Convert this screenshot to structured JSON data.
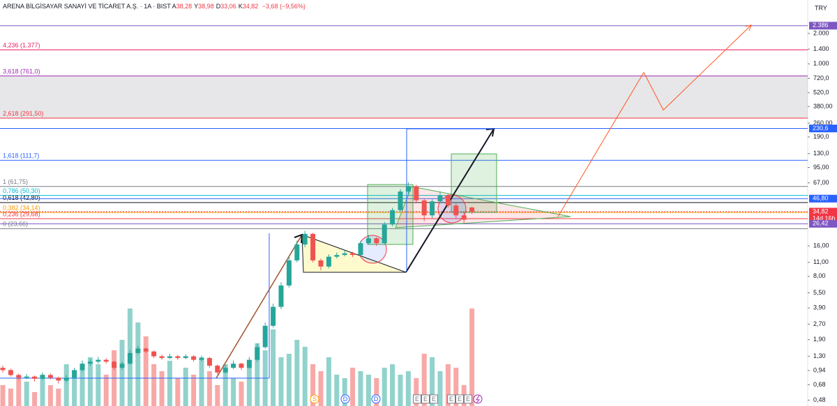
{
  "chart_data": {
    "type": "candlestick",
    "title": "ARENA BİLGİSAYAR SANAYİ VE TİCARET A.Ş. · 1A · BIST",
    "ohlc_labels": [
      {
        "key": "A",
        "value": "38,28"
      },
      {
        "key": "Y",
        "value": "38,98"
      },
      {
        "key": "D",
        "value": "33,06"
      },
      {
        "key": "K",
        "value": "34,82"
      }
    ],
    "change": "−3,68 (−9,56%)",
    "currency": "TRY",
    "log_scale": true,
    "up_color": "#26a69a",
    "down_color": "#ef5350",
    "ylim": [
      0.42,
      4276
    ],
    "yticks": [
      {
        "value": 2000,
        "label": "2.000"
      },
      {
        "value": 1400,
        "label": "1.400"
      },
      {
        "value": 1000,
        "label": "1.000"
      },
      {
        "value": 720,
        "label": "720,0"
      },
      {
        "value": 520,
        "label": "520,0"
      },
      {
        "value": 380,
        "label": "380,00"
      },
      {
        "value": 260,
        "label": "260,00"
      },
      {
        "value": 190,
        "label": "190,0"
      },
      {
        "value": 130,
        "label": "130,0"
      },
      {
        "value": 95,
        "label": "95,00"
      },
      {
        "value": 67,
        "label": "67,00"
      },
      {
        "value": 16,
        "label": "16,00"
      },
      {
        "value": 11,
        "label": "11,00"
      },
      {
        "value": 8,
        "label": "8,00"
      },
      {
        "value": 5.5,
        "label": "5,50"
      },
      {
        "value": 3.9,
        "label": "3,90"
      },
      {
        "value": 2.7,
        "label": "2,70"
      },
      {
        "value": 1.9,
        "label": "1,90"
      },
      {
        "value": 1.3,
        "label": "1,30"
      },
      {
        "value": 0.94,
        "label": "0,94"
      },
      {
        "value": 0.68,
        "label": "0,68"
      },
      {
        "value": 0.48,
        "label": "0,48"
      }
    ],
    "price_labels": [
      {
        "value": 2386,
        "label": "2.386",
        "color": "#7e57c2"
      },
      {
        "value": 230.6,
        "label": "230,6",
        "color": "#2962ff"
      },
      {
        "value": 46.8,
        "label": "46,80",
        "color": "#2962ff"
      },
      {
        "value": 34.82,
        "label": "34,82",
        "color": "#f23645",
        "sub": "14d 16h"
      },
      {
        "value": 26.42,
        "label": "26,42",
        "color": "#7e57c2"
      }
    ],
    "fib_levels": [
      {
        "label": "4,236 (1.377)",
        "price": 1377,
        "color": "#e91e63"
      },
      {
        "label": "3,618 (761,0)",
        "price": 761.0,
        "color": "#9c27b0"
      },
      {
        "label": "2,618 (291,50)",
        "price": 291.5,
        "color": "#f23645"
      },
      {
        "label": "1,618 (111,7)",
        "price": 111.7,
        "color": "#2962ff"
      },
      {
        "label": "1 (61,75)",
        "price": 61.75,
        "color": "#787b86"
      },
      {
        "label": "0,786 (50,30)",
        "price": 50.3,
        "color": "#00bcd4"
      },
      {
        "label": "0,618 (42,80)",
        "price": 42.8,
        "color": "#131722"
      },
      {
        "label": "0,382 (34,14)",
        "price": 34.14,
        "color": "#ff9800"
      },
      {
        "label": "0,236 (29,68)",
        "price": 29.68,
        "color": "#f23645"
      },
      {
        "label": "0 (23,66)",
        "price": 23.66,
        "color": "#787b86"
      }
    ],
    "candles": [
      [
        1.0,
        1.05,
        0.9,
        0.95
      ],
      [
        0.95,
        0.98,
        0.82,
        0.85
      ],
      [
        0.85,
        0.88,
        0.76,
        0.8
      ],
      [
        0.8,
        0.87,
        0.77,
        0.82
      ],
      [
        0.82,
        0.84,
        0.73,
        0.78
      ],
      [
        0.78,
        0.9,
        0.76,
        0.85
      ],
      [
        0.85,
        0.88,
        0.77,
        0.8
      ],
      [
        0.8,
        0.82,
        0.7,
        0.75
      ],
      [
        0.75,
        0.85,
        0.72,
        0.8
      ],
      [
        0.8,
        1.0,
        0.78,
        0.95
      ],
      [
        0.95,
        1.18,
        0.92,
        1.1
      ],
      [
        1.1,
        1.22,
        1.05,
        1.15
      ],
      [
        1.15,
        1.28,
        1.1,
        1.2
      ],
      [
        1.2,
        1.24,
        1.1,
        1.15
      ],
      [
        1.15,
        1.18,
        0.95,
        1.0
      ],
      [
        1.0,
        1.15,
        0.96,
        1.1
      ],
      [
        1.1,
        1.5,
        1.08,
        1.4
      ],
      [
        1.4,
        1.65,
        1.35,
        1.55
      ],
      [
        1.55,
        1.58,
        1.4,
        1.45
      ],
      [
        1.45,
        1.48,
        1.25,
        1.3
      ],
      [
        1.3,
        1.35,
        1.2,
        1.25
      ],
      [
        1.25,
        1.38,
        1.22,
        1.3
      ],
      [
        1.3,
        1.34,
        1.2,
        1.25
      ],
      [
        1.25,
        1.36,
        1.22,
        1.3
      ],
      [
        1.3,
        1.33,
        1.15,
        1.2
      ],
      [
        1.2,
        1.32,
        1.16,
        1.25
      ],
      [
        1.25,
        1.28,
        1.0,
        1.05
      ],
      [
        1.05,
        1.08,
        0.86,
        0.9
      ],
      [
        0.9,
        1.06,
        0.88,
        1.0
      ],
      [
        1.0,
        1.18,
        0.97,
        1.1
      ],
      [
        1.1,
        1.12,
        0.95,
        1.0
      ],
      [
        1.0,
        1.28,
        0.98,
        1.2
      ],
      [
        1.2,
        1.75,
        1.15,
        1.6
      ],
      [
        1.6,
        2.8,
        1.55,
        2.6
      ],
      [
        2.6,
        4.3,
        2.5,
        4.0
      ],
      [
        4.0,
        7.0,
        3.8,
        6.5
      ],
      [
        6.5,
        12.5,
        6.2,
        11.5
      ],
      [
        11.5,
        18.0,
        11.0,
        16.5
      ],
      [
        16.5,
        22.5,
        15.5,
        21.0
      ],
      [
        21.0,
        21.5,
        11.0,
        11.5
      ],
      [
        11.5,
        12.0,
        9.2,
        10.0
      ],
      [
        10.0,
        13.2,
        9.6,
        12.5
      ],
      [
        12.5,
        13.8,
        12.0,
        13.0
      ],
      [
        13.0,
        14.5,
        12.6,
        13.5
      ],
      [
        13.5,
        14.0,
        12.4,
        13.0
      ],
      [
        13.0,
        18.0,
        12.8,
        17.0
      ],
      [
        17.0,
        20.5,
        16.5,
        19.0
      ],
      [
        19.0,
        19.5,
        16.0,
        17.0
      ],
      [
        17.0,
        27.5,
        16.8,
        26.0
      ],
      [
        26.0,
        38.0,
        25.0,
        36.0
      ],
      [
        36.0,
        58.0,
        35.0,
        55.0
      ],
      [
        55.0,
        68.0,
        50.0,
        62.0
      ],
      [
        62.0,
        64.0,
        43.0,
        45.0
      ],
      [
        45.0,
        47.0,
        28.0,
        32.0
      ],
      [
        32.0,
        46.0,
        30.0,
        44.0
      ],
      [
        44.0,
        55.0,
        42.0,
        50.0
      ],
      [
        50.0,
        52.0,
        38.0,
        40.0
      ],
      [
        40.0,
        42.0,
        30.0,
        32.0
      ],
      [
        32.0,
        34.0,
        27.0,
        29.0
      ],
      [
        38.28,
        38.98,
        33.06,
        34.82
      ]
    ],
    "volume": [
      30,
      25,
      40,
      35,
      20,
      45,
      30,
      25,
      60,
      50,
      55,
      70,
      60,
      45,
      80,
      95,
      140,
      120,
      100,
      60,
      50,
      65,
      40,
      55,
      45,
      70,
      50,
      30,
      60,
      40,
      35,
      55,
      90,
      80,
      110,
      70,
      75,
      95,
      85,
      60,
      50,
      70,
      45,
      40,
      55,
      50,
      45,
      40,
      55,
      60,
      45,
      50,
      40,
      75,
      70,
      50,
      60,
      55,
      30,
      140
    ],
    "events": [
      {
        "label": "S",
        "color": "#ff9800"
      },
      {
        "label": "D",
        "color": "#2962ff"
      },
      {
        "label": "D",
        "color": "#2962ff"
      },
      {
        "label": "E",
        "color": "#787b86"
      },
      {
        "label": "E",
        "color": "#787b86"
      },
      {
        "label": "E",
        "color": "#787b86"
      },
      {
        "label": "E",
        "color": "#787b86"
      },
      {
        "label": "E",
        "color": "#787b86"
      },
      {
        "label": "E",
        "color": "#787b86"
      }
    ]
  }
}
